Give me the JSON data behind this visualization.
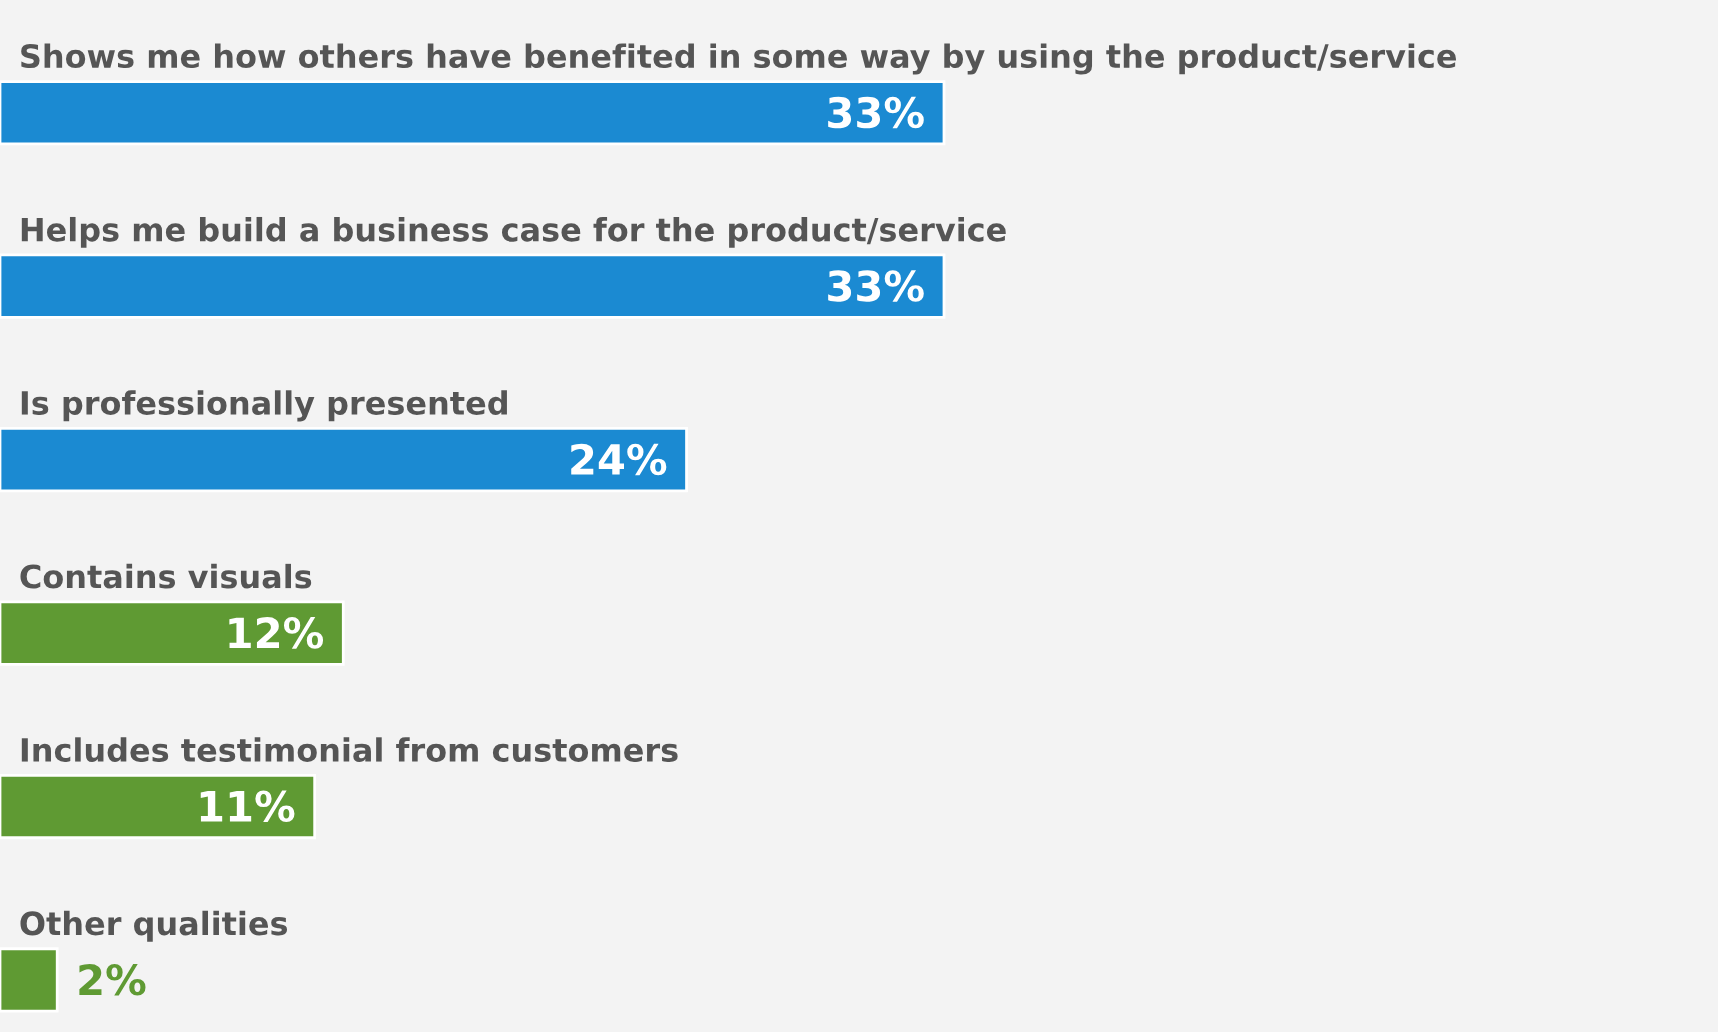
{
  "chart_data": {
    "type": "bar",
    "orientation": "horizontal",
    "categories": [
      "Shows me how others have benefited in some way by using the product/service",
      "Helps me build a business case for the product/service",
      "Is professionally presented",
      "Contains visuals",
      "Includes testimonial from customers",
      "Other qualities"
    ],
    "values": [
      33,
      33,
      24,
      12,
      11,
      2
    ],
    "colors": [
      "#1b8ad2",
      "#1b8ad2",
      "#1b8ad2",
      "#5f9a33",
      "#5f9a33",
      "#5f9a33"
    ],
    "value_labels": [
      "33%",
      "33%",
      "24%",
      "12%",
      "11%",
      "2%"
    ]
  }
}
